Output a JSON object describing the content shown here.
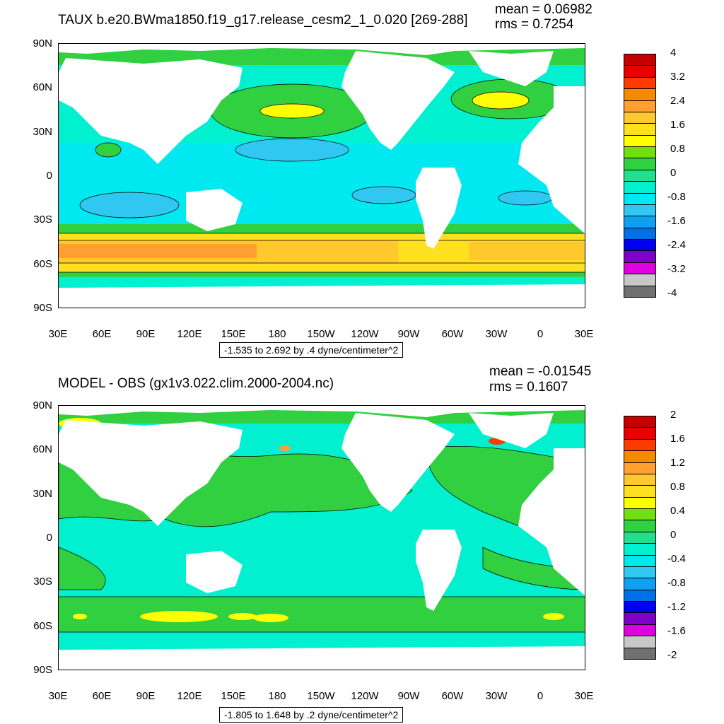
{
  "panels": [
    {
      "title": "TAUX b.e20.BWma1850.f19_g17.release_cesm2_1_0.020 [269-288]",
      "mean": "mean = 0.06982",
      "rms": "rms = 0.7254",
      "contour_info": "-1.535 to 2.692 by .4 dyne/centimeter^2",
      "colorbar_labels": [
        "4",
        "3.2",
        "2.4",
        "1.6",
        "0.8",
        "0",
        "-0.8",
        "-1.6",
        "-2.4",
        "-3.2",
        "-4"
      ],
      "colors": [
        "#c40000",
        "#e80000",
        "#ff3a00",
        "#f58a00",
        "#ffa030",
        "#ffc82c",
        "#ffe020",
        "#ffff00",
        "#70e010",
        "#30d040",
        "#20e090",
        "#00f0d0",
        "#00e8f0",
        "#30c8f0",
        "#10a0f0",
        "#0070e8",
        "#0000f0",
        "#8000c8",
        "#e000e0",
        "#c8c8c8",
        "#707070"
      ]
    },
    {
      "title": "MODEL - OBS (gx1v3.022.clim.2000-2004.nc)",
      "mean": "mean = -0.01545",
      "rms": "rms = 0.1607",
      "contour_info": "-1.805 to 1.648 by .2 dyne/centimeter^2",
      "colorbar_labels": [
        "2",
        "1.6",
        "1.2",
        "0.8",
        "0.4",
        "0",
        "-0.4",
        "-0.8",
        "-1.2",
        "-1.6",
        "-2"
      ],
      "colors": [
        "#c40000",
        "#e80000",
        "#ff3a00",
        "#f58a00",
        "#ffa030",
        "#ffc82c",
        "#ffe020",
        "#ffff00",
        "#70e010",
        "#30d040",
        "#20e090",
        "#00f0d0",
        "#00e8f0",
        "#30c8f0",
        "#10a0f0",
        "#0070e8",
        "#0000f0",
        "#8000c8",
        "#e000e0",
        "#c8c8c8",
        "#707070"
      ]
    }
  ],
  "axes": {
    "lat_labels": [
      "90N",
      "60N",
      "30N",
      "0",
      "30S",
      "60S",
      "90S"
    ],
    "lon_labels": [
      "30E",
      "60E",
      "90E",
      "120E",
      "150E",
      "180",
      "150W",
      "120W",
      "90W",
      "60W",
      "30W",
      "0",
      "30E"
    ]
  }
}
